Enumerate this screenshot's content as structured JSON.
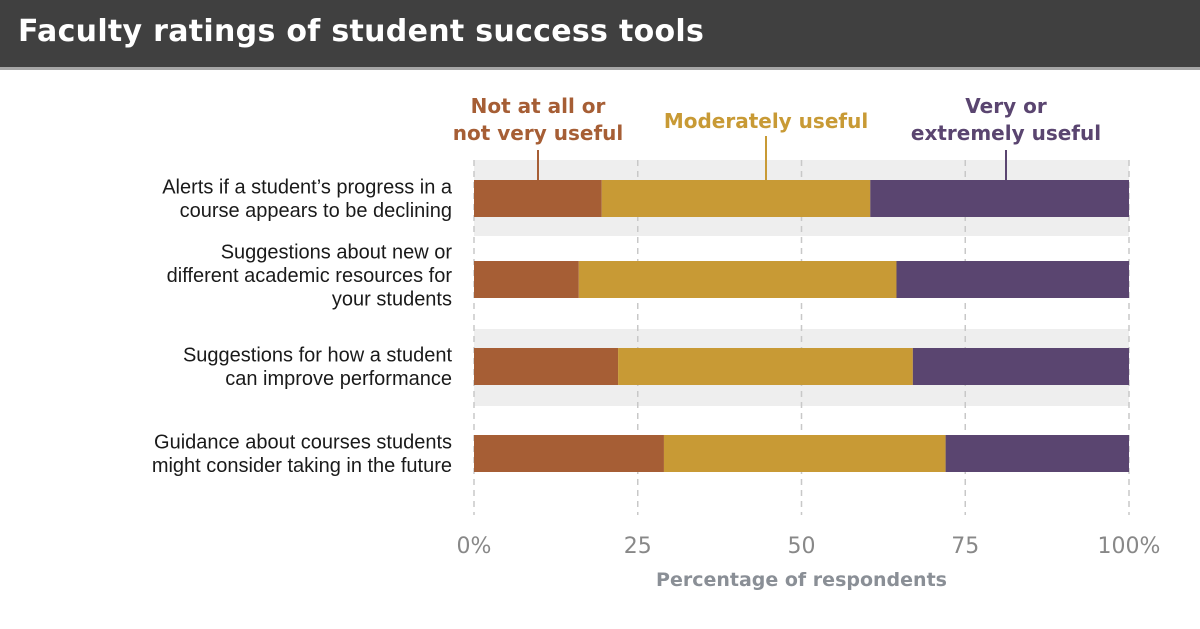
{
  "header": {
    "title": "Faculty ratings of student success tools"
  },
  "colors": {
    "header_bg": "#404040",
    "band": "#eeeeee"
  },
  "chart_data": {
    "type": "bar",
    "orientation": "horizontal",
    "stacked": true,
    "title": "Faculty ratings of student success tools",
    "xlabel": "Percentage of respondents",
    "ylabel": "",
    "xlim": [
      0,
      100
    ],
    "xticks": [
      0,
      25,
      50,
      75,
      100
    ],
    "xtick_labels": [
      "0%",
      "25",
      "50",
      "75",
      "100%"
    ],
    "grid": "vertical dashed",
    "legend": "top, labels above bars",
    "categories": [
      "Alerts if a student’s progress in a course appears to be declining",
      "Suggestions about new or different academic resources for your students",
      "Suggestions for how a student can improve performance",
      "Guidance about courses students might consider taking in the future"
    ],
    "category_lines": [
      [
        "Alerts if a student’s progress in a",
        "course appears to be declining"
      ],
      [
        "Suggestions about new or",
        "different academic resources for",
        "your students"
      ],
      [
        "Suggestions for how a student",
        "can improve performance"
      ],
      [
        "Guidance about courses students",
        "might consider taking in the future"
      ]
    ],
    "series": [
      {
        "name": "Not at all or not very useful",
        "legend_lines": [
          "Not at all or",
          "not very useful"
        ],
        "color": "#a65e35",
        "values": [
          19.5,
          16,
          22,
          29
        ]
      },
      {
        "name": "Moderately useful",
        "legend_lines": [
          "Moderately useful"
        ],
        "color": "#c89a35",
        "values": [
          41,
          48.5,
          45,
          43
        ]
      },
      {
        "name": "Very or extremely useful",
        "legend_lines": [
          "Very or",
          "extremely useful"
        ],
        "color": "#5a4570",
        "values": [
          39.5,
          35.5,
          33,
          28
        ]
      }
    ]
  }
}
